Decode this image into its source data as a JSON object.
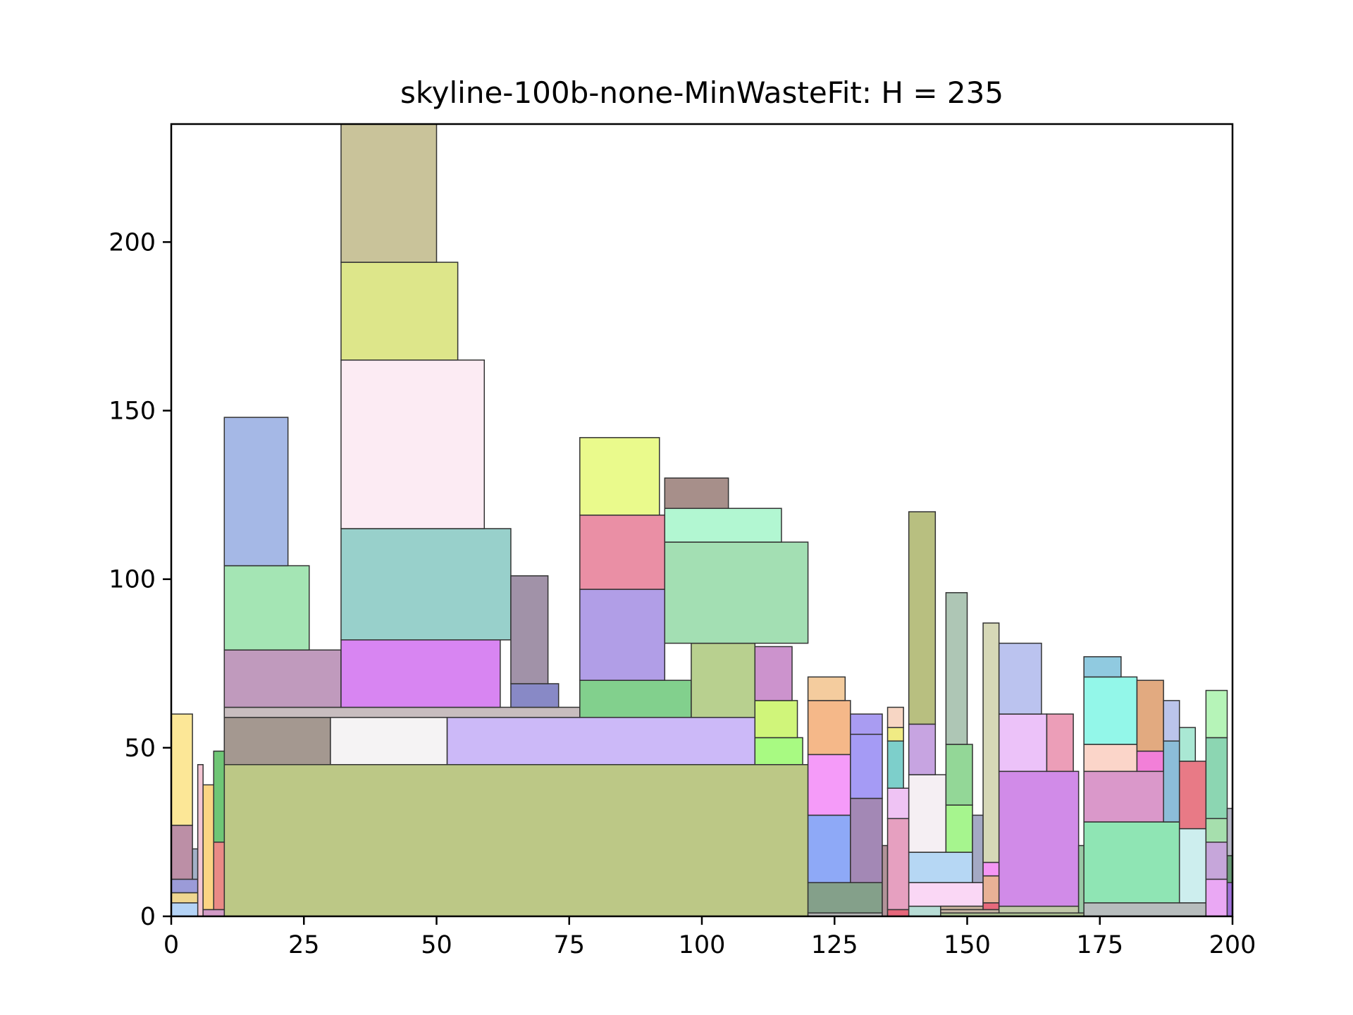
{
  "chart_data": {
    "type": "rectangle-packing",
    "title": "skyline-100b-none-MinWasteFit: H = 235",
    "xlabel": "",
    "ylabel": "",
    "xlim": [
      0,
      200
    ],
    "ylim": [
      0,
      235
    ],
    "grid": false,
    "x_ticks": [
      0,
      25,
      50,
      75,
      100,
      125,
      150,
      175,
      200
    ],
    "y_ticks": [
      0,
      50,
      100,
      150,
      200
    ],
    "edge_color": "#333333",
    "rectangles": [
      {
        "x": 10,
        "y": 0,
        "w": 110,
        "h": 45,
        "color": "#bcc886"
      },
      {
        "x": 10,
        "y": 45,
        "w": 20,
        "h": 14,
        "color": "#a49890"
      },
      {
        "x": 30,
        "y": 45,
        "w": 22,
        "h": 14,
        "color": "#f5f3f4"
      },
      {
        "x": 52,
        "y": 45,
        "w": 58,
        "h": 14,
        "color": "#ccb9f8"
      },
      {
        "x": 10,
        "y": 59,
        "w": 67,
        "h": 3,
        "color": "#c8bdbf"
      },
      {
        "x": 10,
        "y": 62,
        "w": 22,
        "h": 17,
        "color": "#c09abd"
      },
      {
        "x": 10,
        "y": 79,
        "w": 16,
        "h": 25,
        "color": "#a4e5b4"
      },
      {
        "x": 10,
        "y": 104,
        "w": 12,
        "h": 44,
        "color": "#a5b8e6"
      },
      {
        "x": 32,
        "y": 62,
        "w": 30,
        "h": 20,
        "color": "#d885f2"
      },
      {
        "x": 32,
        "y": 82,
        "w": 32,
        "h": 33,
        "color": "#98d0cb"
      },
      {
        "x": 32,
        "y": 115,
        "w": 27,
        "h": 50,
        "color": "#fcebf3"
      },
      {
        "x": 32,
        "y": 165,
        "w": 22,
        "h": 29,
        "color": "#dde68a"
      },
      {
        "x": 32,
        "y": 194,
        "w": 18,
        "h": 41,
        "color": "#c9c39a"
      },
      {
        "x": 64,
        "y": 62,
        "w": 9,
        "h": 7,
        "color": "#8889c6"
      },
      {
        "x": 64,
        "y": 69,
        "w": 7,
        "h": 32,
        "color": "#a192a8"
      },
      {
        "x": 77,
        "y": 59,
        "w": 21,
        "h": 11,
        "color": "#82d08d"
      },
      {
        "x": 77,
        "y": 70,
        "w": 16,
        "h": 27,
        "color": "#b19ee7"
      },
      {
        "x": 77,
        "y": 97,
        "w": 16,
        "h": 22,
        "color": "#ea8fa5"
      },
      {
        "x": 77,
        "y": 119,
        "w": 15,
        "h": 23,
        "color": "#eafa8c"
      },
      {
        "x": 98,
        "y": 59,
        "w": 12,
        "h": 22,
        "color": "#b8d08f"
      },
      {
        "x": 93,
        "y": 81,
        "w": 27,
        "h": 30,
        "color": "#a3dfb3"
      },
      {
        "x": 93,
        "y": 111,
        "w": 22,
        "h": 10,
        "color": "#b2f7d2"
      },
      {
        "x": 93,
        "y": 121,
        "w": 12,
        "h": 9,
        "color": "#a78f8a"
      },
      {
        "x": 110,
        "y": 45,
        "w": 9,
        "h": 8,
        "color": "#a8fa82"
      },
      {
        "x": 110,
        "y": 53,
        "w": 8,
        "h": 11,
        "color": "#d0f57a"
      },
      {
        "x": 110,
        "y": 64,
        "w": 7,
        "h": 16,
        "color": "#cc93cd"
      },
      {
        "x": 0,
        "y": 0,
        "w": 6,
        "h": 4,
        "color": "#b4d3f6"
      },
      {
        "x": 0,
        "y": 4,
        "w": 5,
        "h": 3,
        "color": "#efd690"
      },
      {
        "x": 0,
        "y": 7,
        "w": 5,
        "h": 4,
        "color": "#9b9bd8"
      },
      {
        "x": 0,
        "y": 11,
        "w": 4,
        "h": 16,
        "color": "#bc8fa6"
      },
      {
        "x": 0,
        "y": 27,
        "w": 4,
        "h": 33,
        "color": "#fce797"
      },
      {
        "x": 4,
        "y": 11,
        "w": 1,
        "h": 9,
        "color": "#a3b0c7"
      },
      {
        "x": 5,
        "y": 0,
        "w": 1,
        "h": 45,
        "color": "#f4c6d4"
      },
      {
        "x": 6,
        "y": 0,
        "w": 4,
        "h": 2,
        "color": "#d29ac6"
      },
      {
        "x": 6,
        "y": 2,
        "w": 2,
        "h": 37,
        "color": "#fbd483"
      },
      {
        "x": 8,
        "y": 2,
        "w": 2,
        "h": 20,
        "color": "#ea8a86"
      },
      {
        "x": 8,
        "y": 22,
        "w": 2,
        "h": 27,
        "color": "#6fc676"
      },
      {
        "x": 120,
        "y": 0,
        "w": 14,
        "h": 1,
        "color": "#b6b6b6"
      },
      {
        "x": 120,
        "y": 1,
        "w": 14,
        "h": 9,
        "color": "#84a08a"
      },
      {
        "x": 120,
        "y": 10,
        "w": 8,
        "h": 20,
        "color": "#8ea9f7"
      },
      {
        "x": 120,
        "y": 30,
        "w": 8,
        "h": 18,
        "color": "#f59bf9"
      },
      {
        "x": 120,
        "y": 48,
        "w": 8,
        "h": 16,
        "color": "#f5b889"
      },
      {
        "x": 120,
        "y": 64,
        "w": 7,
        "h": 7,
        "color": "#f4cc9e"
      },
      {
        "x": 128,
        "y": 10,
        "w": 6,
        "h": 25,
        "color": "#a388b5"
      },
      {
        "x": 128,
        "y": 35,
        "w": 6,
        "h": 19,
        "color": "#a59bf5"
      },
      {
        "x": 128,
        "y": 54,
        "w": 6,
        "h": 6,
        "color": "#a99cf2"
      },
      {
        "x": 134,
        "y": 0,
        "w": 1,
        "h": 21,
        "color": "#b29399"
      },
      {
        "x": 135,
        "y": 0,
        "w": 4,
        "h": 2,
        "color": "#e6677b"
      },
      {
        "x": 135,
        "y": 2,
        "w": 4,
        "h": 27,
        "color": "#e6a0c0"
      },
      {
        "x": 135,
        "y": 29,
        "w": 4,
        "h": 9,
        "color": "#efc3f4"
      },
      {
        "x": 135,
        "y": 38,
        "w": 3,
        "h": 14,
        "color": "#7dcfcb"
      },
      {
        "x": 135,
        "y": 52,
        "w": 3,
        "h": 4,
        "color": "#f0eb84"
      },
      {
        "x": 135,
        "y": 56,
        "w": 3,
        "h": 6,
        "color": "#f7d6c4"
      },
      {
        "x": 139,
        "y": 0,
        "w": 6,
        "h": 3,
        "color": "#b7dcd5"
      },
      {
        "x": 139,
        "y": 3,
        "w": 14,
        "h": 7,
        "color": "#fad7f5"
      },
      {
        "x": 139,
        "y": 10,
        "w": 12,
        "h": 9,
        "color": "#b6d7f4"
      },
      {
        "x": 139,
        "y": 19,
        "w": 7,
        "h": 23,
        "color": "#f5eff3"
      },
      {
        "x": 139,
        "y": 42,
        "w": 5,
        "h": 15,
        "color": "#c7a4e1"
      },
      {
        "x": 139,
        "y": 57,
        "w": 5,
        "h": 63,
        "color": "#b8bf80"
      },
      {
        "x": 145,
        "y": 0,
        "w": 27,
        "h": 1,
        "color": "#a8bd8f"
      },
      {
        "x": 145,
        "y": 1,
        "w": 27,
        "h": 1,
        "color": "#c6b6a4"
      },
      {
        "x": 145,
        "y": 2,
        "w": 8,
        "h": 1,
        "color": "#c8b29c"
      },
      {
        "x": 146,
        "y": 19,
        "w": 5,
        "h": 14,
        "color": "#a6f58e"
      },
      {
        "x": 146,
        "y": 33,
        "w": 5,
        "h": 18,
        "color": "#93d797"
      },
      {
        "x": 146,
        "y": 51,
        "w": 4,
        "h": 45,
        "color": "#aec6b5"
      },
      {
        "x": 151,
        "y": 10,
        "w": 2,
        "h": 20,
        "color": "#a4a9c4"
      },
      {
        "x": 153,
        "y": 2,
        "w": 3,
        "h": 2,
        "color": "#e7697c"
      },
      {
        "x": 153,
        "y": 4,
        "w": 3,
        "h": 8,
        "color": "#e8b196"
      },
      {
        "x": 153,
        "y": 12,
        "w": 3,
        "h": 4,
        "color": "#f496f4"
      },
      {
        "x": 153,
        "y": 16,
        "w": 3,
        "h": 71,
        "color": "#d6d8b7"
      },
      {
        "x": 156,
        "y": 1,
        "w": 15,
        "h": 2,
        "color": "#c0c8a8"
      },
      {
        "x": 156,
        "y": 3,
        "w": 15,
        "h": 40,
        "color": "#d18be8"
      },
      {
        "x": 156,
        "y": 43,
        "w": 9,
        "h": 17,
        "color": "#ecc2f9"
      },
      {
        "x": 156,
        "y": 60,
        "w": 8,
        "h": 21,
        "color": "#bbc3ef"
      },
      {
        "x": 165,
        "y": 43,
        "w": 5,
        "h": 17,
        "color": "#ec9eb8"
      },
      {
        "x": 171,
        "y": 1,
        "w": 1,
        "h": 20,
        "color": "#9ac9a5"
      },
      {
        "x": 172,
        "y": 0,
        "w": 23,
        "h": 4,
        "color": "#b7bdbd"
      },
      {
        "x": 172,
        "y": 4,
        "w": 18,
        "h": 24,
        "color": "#8fe5b4"
      },
      {
        "x": 172,
        "y": 28,
        "w": 18,
        "h": 15,
        "color": "#da98ca"
      },
      {
        "x": 172,
        "y": 43,
        "w": 10,
        "h": 8,
        "color": "#fbd5c9"
      },
      {
        "x": 172,
        "y": 51,
        "w": 10,
        "h": 20,
        "color": "#93f7e9"
      },
      {
        "x": 172,
        "y": 71,
        "w": 7,
        "h": 6,
        "color": "#90cae0"
      },
      {
        "x": 182,
        "y": 43,
        "w": 5,
        "h": 6,
        "color": "#f27fd8"
      },
      {
        "x": 182,
        "y": 49,
        "w": 5,
        "h": 21,
        "color": "#e2aa80"
      },
      {
        "x": 187,
        "y": 28,
        "w": 3,
        "h": 24,
        "color": "#8cbdd8"
      },
      {
        "x": 187,
        "y": 52,
        "w": 3,
        "h": 12,
        "color": "#bbc4eb"
      },
      {
        "x": 190,
        "y": 4,
        "w": 5,
        "h": 22,
        "color": "#cdeeee"
      },
      {
        "x": 190,
        "y": 26,
        "w": 5,
        "h": 20,
        "color": "#e87a86"
      },
      {
        "x": 190,
        "y": 46,
        "w": 3,
        "h": 10,
        "color": "#aae8d4"
      },
      {
        "x": 195,
        "y": 0,
        "w": 4,
        "h": 11,
        "color": "#eaa8f4"
      },
      {
        "x": 195,
        "y": 11,
        "w": 4,
        "h": 11,
        "color": "#c6a6da"
      },
      {
        "x": 195,
        "y": 22,
        "w": 4,
        "h": 7,
        "color": "#a6dfad"
      },
      {
        "x": 195,
        "y": 29,
        "w": 4,
        "h": 24,
        "color": "#8cd6b2"
      },
      {
        "x": 195,
        "y": 53,
        "w": 4,
        "h": 14,
        "color": "#b6f4b8"
      },
      {
        "x": 199,
        "y": 0,
        "w": 1,
        "h": 10,
        "color": "#9f70d9"
      },
      {
        "x": 199,
        "y": 10,
        "w": 1,
        "h": 8,
        "color": "#699a76"
      },
      {
        "x": 199,
        "y": 18,
        "w": 1,
        "h": 14,
        "color": "#b7b7c7"
      }
    ]
  }
}
